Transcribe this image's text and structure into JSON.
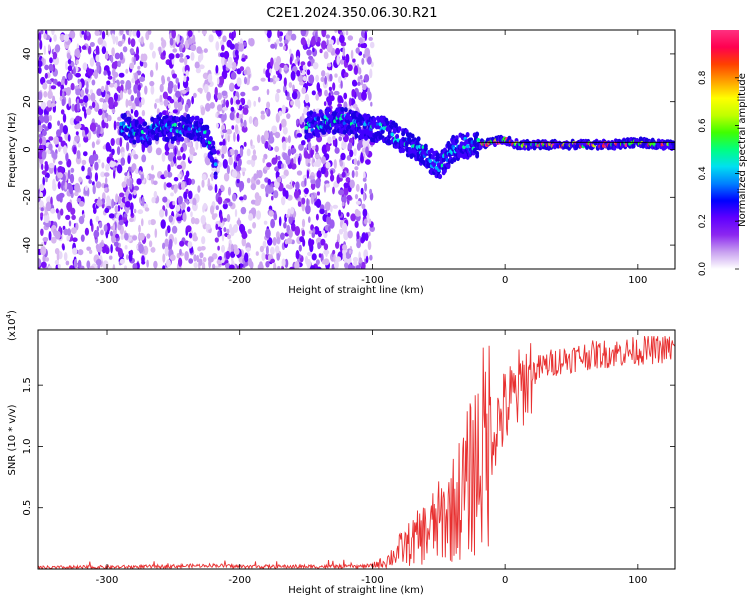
{
  "title": "C2E1.2024.350.06.30.R21",
  "chart_data": [
    {
      "type": "heatmap",
      "xlabel": "Height of straight line (km)",
      "ylabel": "Frequency (Hz)",
      "xlim": [
        -352,
        128
      ],
      "ylim": [
        -50,
        50
      ],
      "xticks": [
        -300,
        -200,
        -100,
        0,
        100
      ],
      "yticks": [
        -40,
        -20,
        0,
        20,
        40
      ],
      "colorbar": {
        "label": "Normalized spectral amplitude",
        "range": [
          0,
          1
        ],
        "ticks": [
          0.0,
          0.2,
          0.4,
          0.6,
          0.8
        ],
        "colors": [
          "#ffffff",
          "#c8a0f0",
          "#8c28f0",
          "#6000ff",
          "#0000ff",
          "#0080ff",
          "#00e0f0",
          "#00ff80",
          "#40ff00",
          "#c0ff00",
          "#ffff00",
          "#ffa000",
          "#ff4000",
          "#ff0050",
          "#ff3080"
        ]
      },
      "noise_region_x": [
        -352,
        -100
      ],
      "ridge": {
        "x": [
          -290,
          -280,
          -270,
          -260,
          -250,
          -240,
          -230,
          -225,
          -220,
          -218,
          -150,
          -140,
          -130,
          -120,
          -110,
          -100,
          -90,
          -80,
          -70,
          -60,
          -55,
          -50,
          -45,
          -40,
          -35,
          -30,
          -25,
          -20,
          -10,
          0,
          10,
          20,
          40,
          60,
          80,
          100,
          120,
          128
        ],
        "y": [
          10,
          8,
          6,
          10,
          8,
          10,
          9,
          5,
          -2,
          -7,
          10,
          11,
          12,
          12,
          10,
          9,
          8,
          5,
          1,
          -2,
          -5,
          -7,
          -4,
          0,
          1,
          2,
          1,
          2,
          3,
          4,
          2,
          2,
          2,
          2,
          2,
          3,
          2,
          2
        ]
      },
      "reference_line_y": 3
    },
    {
      "type": "line",
      "xlabel": "Height of straight line (km)",
      "ylabel": "SNR (10 * v/v)",
      "multiplier_label": "(x10",
      "multiplier_exp": "4",
      "xlim": [
        -352,
        128
      ],
      "ylim": [
        0,
        1.95
      ],
      "xticks": [
        -300,
        -200,
        -100,
        0,
        100
      ],
      "yticks": [
        0.5,
        1.0,
        1.5
      ],
      "color": "#e83030",
      "x": [
        -352,
        -300,
        -260,
        -220,
        -200,
        -150,
        -110,
        -100,
        -90,
        -80,
        -70,
        -60,
        -50,
        -40,
        -30,
        -20,
        -10,
        0,
        10,
        20,
        30,
        40,
        60,
        80,
        100,
        128
      ],
      "y": [
        0.01,
        0.015,
        0.02,
        0.03,
        0.02,
        0.02,
        0.02,
        0.03,
        0.06,
        0.15,
        0.22,
        0.3,
        0.38,
        0.48,
        0.65,
        0.9,
        1.1,
        1.3,
        1.45,
        1.6,
        1.66,
        1.7,
        1.74,
        1.76,
        1.78,
        1.8
      ]
    }
  ]
}
